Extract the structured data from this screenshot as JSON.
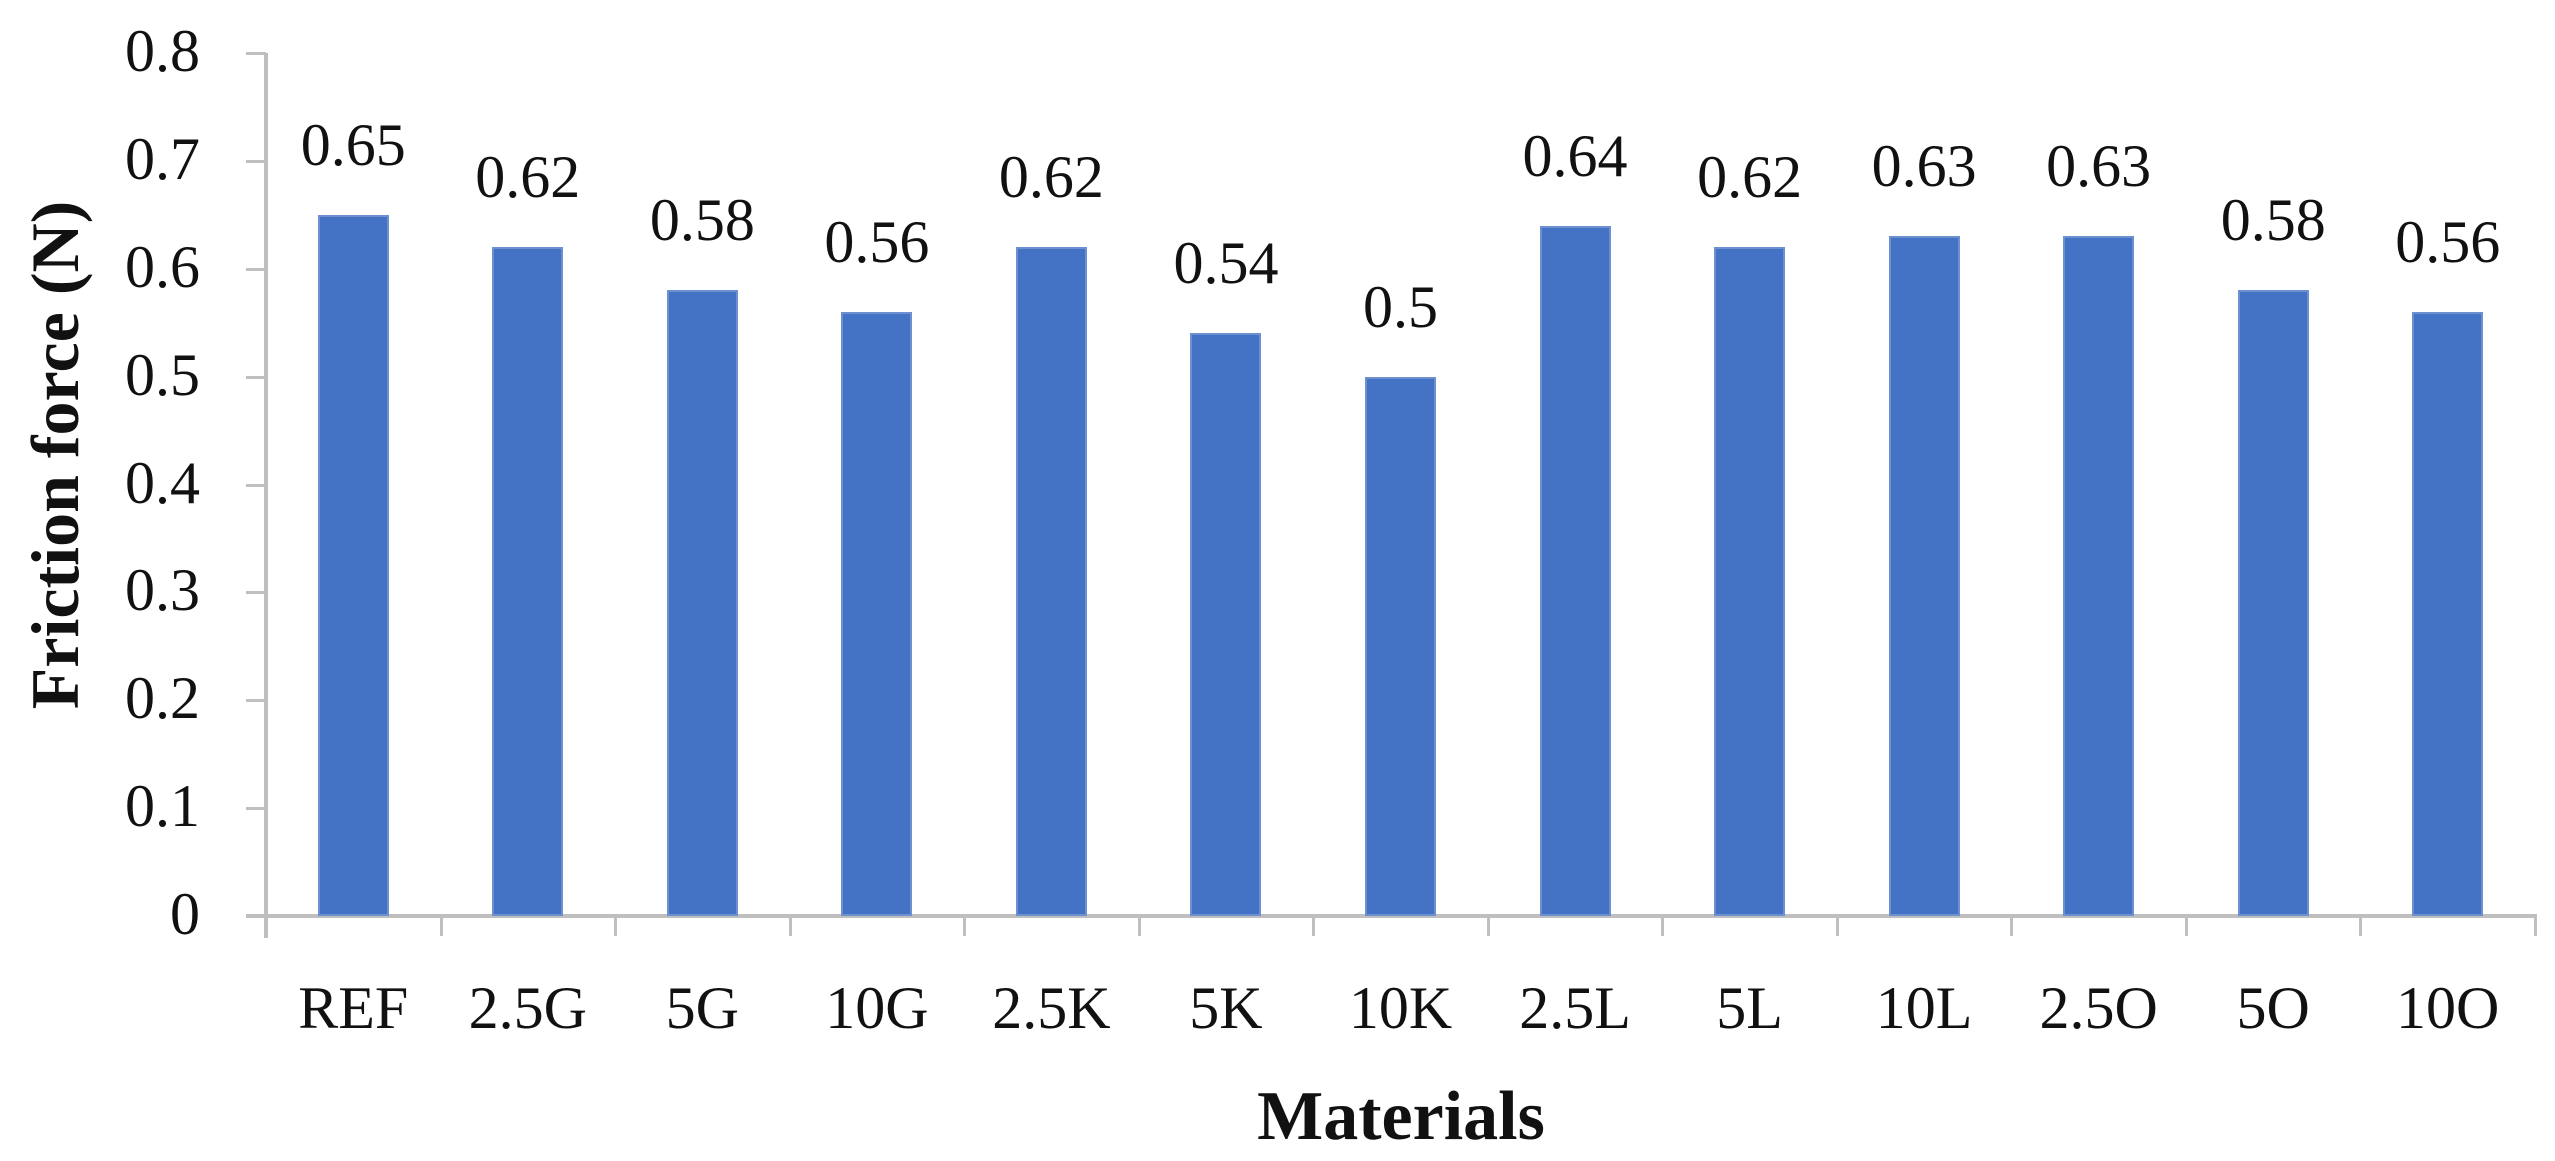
{
  "chart_data": {
    "type": "bar",
    "title": "",
    "xlabel": "Materials",
    "ylabel": "Friction force (N)",
    "ylim": [
      0,
      0.8
    ],
    "yticks": [
      0,
      0.1,
      0.2,
      0.3,
      0.4,
      0.5,
      0.6,
      0.7,
      0.8
    ],
    "ytick_labels": [
      "0",
      "0.1",
      "0.2",
      "0.3",
      "0.4",
      "0.5",
      "0.6",
      "0.7",
      "0.8"
    ],
    "grid": false,
    "legend": null,
    "categories": [
      "REF",
      "2.5G",
      "5G",
      "10G",
      "2.5K",
      "5K",
      "10K",
      "2.5L",
      "5L",
      "10L",
      "2.5O",
      "5O",
      "10O"
    ],
    "values": [
      0.65,
      0.62,
      0.58,
      0.56,
      0.62,
      0.54,
      0.5,
      0.64,
      0.62,
      0.63,
      0.63,
      0.58,
      0.56
    ],
    "data_labels": [
      "0.65",
      "0.62",
      "0.58",
      "0.56",
      "0.62",
      "0.54",
      "0.5",
      "0.64",
      "0.62",
      "0.63",
      "0.63",
      "0.58",
      "0.56"
    ],
    "bar_color": "#4472C4",
    "axis_color": "#BFBFBF"
  }
}
